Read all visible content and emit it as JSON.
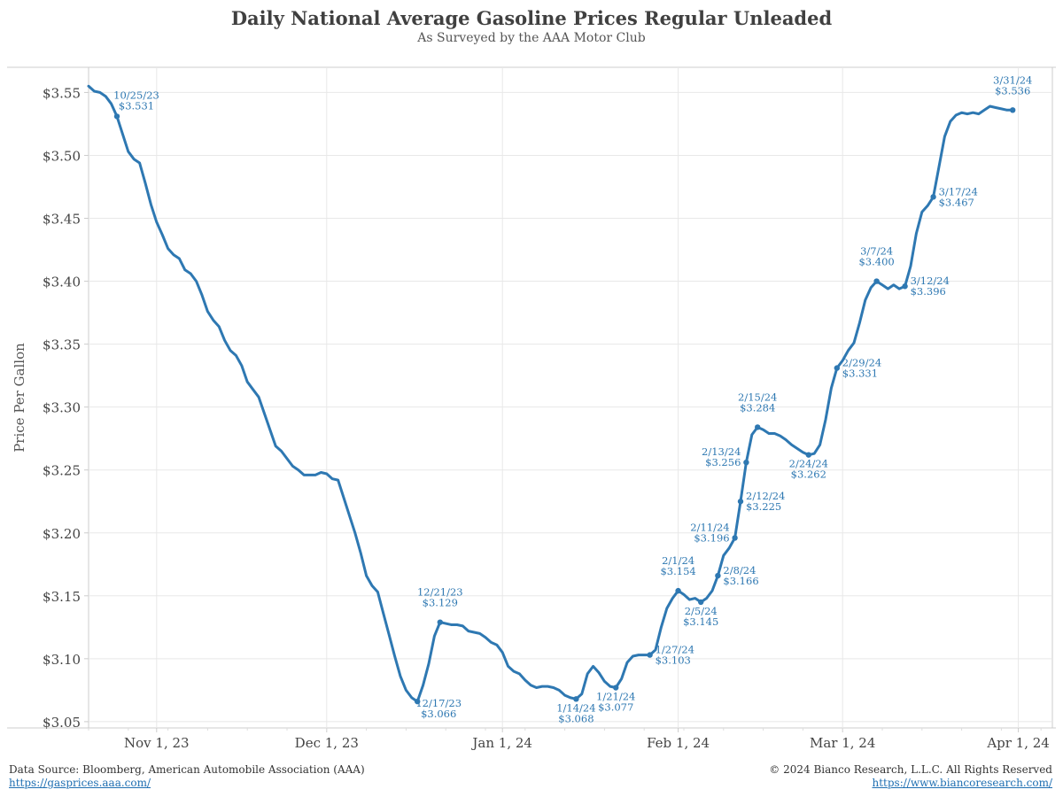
{
  "title": "Daily National Average Gasoline Prices Regular Unleaded",
  "subtitle": "As Surveyed by the AAA Motor Club",
  "footer": {
    "source": "Data Source: Bloomberg, American Automobile Association (AAA)",
    "source_link": "https://gasprices.aaa.com/",
    "copyright": "© 2024 Bianco Research, L.L.C. All Rights Reserved",
    "site_link": "https://www.biancoresearch.com/"
  },
  "colors": {
    "line": "#2e78b2",
    "label": "#2e78b2",
    "grid": "#e8e8e8",
    "axis": "#cccccc"
  },
  "chart_data": {
    "type": "line",
    "title": "Daily National Average Gasoline Prices Regular Unleaded",
    "subtitle": "As Surveyed by the AAA Motor Club",
    "xlabel": "",
    "ylabel": "Price Per Gallon",
    "xlim": [
      "2023-10-20",
      "2024-04-07"
    ],
    "ylim": [
      3.045,
      3.57
    ],
    "grid": true,
    "x_ticks": [
      {
        "date": "2023-11-01",
        "label": "Nov 1, 23"
      },
      {
        "date": "2023-12-01",
        "label": "Dec 1, 23"
      },
      {
        "date": "2024-01-01",
        "label": "Jan 1, 24"
      },
      {
        "date": "2024-02-01",
        "label": "Feb 1, 24"
      },
      {
        "date": "2024-03-01",
        "label": "Mar 1, 24"
      },
      {
        "date": "2024-04-01",
        "label": "Apr 1, 24"
      }
    ],
    "y_ticks": [
      {
        "value": 3.05,
        "label": "$3.05"
      },
      {
        "value": 3.1,
        "label": "$3.10"
      },
      {
        "value": 3.15,
        "label": "$3.15"
      },
      {
        "value": 3.2,
        "label": "$3.20"
      },
      {
        "value": 3.25,
        "label": "$3.25"
      },
      {
        "value": 3.3,
        "label": "$3.30"
      },
      {
        "value": 3.35,
        "label": "$3.35"
      },
      {
        "value": 3.4,
        "label": "$3.40"
      },
      {
        "value": 3.45,
        "label": "$3.45"
      },
      {
        "value": 3.5,
        "label": "$3.50"
      },
      {
        "value": 3.55,
        "label": "$3.55"
      }
    ],
    "series": [
      {
        "points": [
          [
            "2023-10-20",
            3.555
          ],
          [
            "2023-10-21",
            3.551
          ],
          [
            "2023-10-22",
            3.55
          ],
          [
            "2023-10-23",
            3.547
          ],
          [
            "2023-10-24",
            3.541
          ],
          [
            "2023-10-25",
            3.531
          ],
          [
            "2023-10-26",
            3.517
          ],
          [
            "2023-10-27",
            3.503
          ],
          [
            "2023-10-28",
            3.497
          ],
          [
            "2023-10-29",
            3.494
          ],
          [
            "2023-10-30",
            3.478
          ],
          [
            "2023-10-31",
            3.461
          ],
          [
            "2023-11-01",
            3.447
          ],
          [
            "2023-11-02",
            3.437
          ],
          [
            "2023-11-03",
            3.426
          ],
          [
            "2023-11-04",
            3.421
          ],
          [
            "2023-11-05",
            3.418
          ],
          [
            "2023-11-06",
            3.409
          ],
          [
            "2023-11-07",
            3.406
          ],
          [
            "2023-11-08",
            3.4
          ],
          [
            "2023-11-09",
            3.389
          ],
          [
            "2023-11-10",
            3.376
          ],
          [
            "2023-11-11",
            3.369
          ],
          [
            "2023-11-12",
            3.364
          ],
          [
            "2023-11-13",
            3.353
          ],
          [
            "2023-11-14",
            3.345
          ],
          [
            "2023-11-15",
            3.341
          ],
          [
            "2023-11-16",
            3.333
          ],
          [
            "2023-11-17",
            3.32
          ],
          [
            "2023-11-18",
            3.314
          ],
          [
            "2023-11-19",
            3.308
          ],
          [
            "2023-11-20",
            3.295
          ],
          [
            "2023-11-21",
            3.282
          ],
          [
            "2023-11-22",
            3.269
          ],
          [
            "2023-11-23",
            3.265
          ],
          [
            "2023-11-24",
            3.259
          ],
          [
            "2023-11-25",
            3.253
          ],
          [
            "2023-11-26",
            3.25
          ],
          [
            "2023-11-27",
            3.246
          ],
          [
            "2023-11-28",
            3.246
          ],
          [
            "2023-11-29",
            3.246
          ],
          [
            "2023-11-30",
            3.248
          ],
          [
            "2023-12-01",
            3.247
          ],
          [
            "2023-12-02",
            3.243
          ],
          [
            "2023-12-03",
            3.242
          ],
          [
            "2023-12-04",
            3.228
          ],
          [
            "2023-12-05",
            3.214
          ],
          [
            "2023-12-06",
            3.2
          ],
          [
            "2023-12-07",
            3.184
          ],
          [
            "2023-12-08",
            3.166
          ],
          [
            "2023-12-09",
            3.158
          ],
          [
            "2023-12-10",
            3.153
          ],
          [
            "2023-12-11",
            3.136
          ],
          [
            "2023-12-12",
            3.119
          ],
          [
            "2023-12-13",
            3.102
          ],
          [
            "2023-12-14",
            3.086
          ],
          [
            "2023-12-15",
            3.075
          ],
          [
            "2023-12-16",
            3.069
          ],
          [
            "2023-12-17",
            3.066
          ],
          [
            "2023-12-18",
            3.079
          ],
          [
            "2023-12-19",
            3.096
          ],
          [
            "2023-12-20",
            3.118
          ],
          [
            "2023-12-21",
            3.129
          ],
          [
            "2023-12-22",
            3.128
          ],
          [
            "2023-12-23",
            3.127
          ],
          [
            "2023-12-24",
            3.127
          ],
          [
            "2023-12-25",
            3.126
          ],
          [
            "2023-12-26",
            3.122
          ],
          [
            "2023-12-27",
            3.121
          ],
          [
            "2023-12-28",
            3.12
          ],
          [
            "2023-12-29",
            3.117
          ],
          [
            "2023-12-30",
            3.113
          ],
          [
            "2023-12-31",
            3.111
          ],
          [
            "2024-01-01",
            3.105
          ],
          [
            "2024-01-02",
            3.094
          ],
          [
            "2024-01-03",
            3.09
          ],
          [
            "2024-01-04",
            3.088
          ],
          [
            "2024-01-05",
            3.083
          ],
          [
            "2024-01-06",
            3.079
          ],
          [
            "2024-01-07",
            3.077
          ],
          [
            "2024-01-08",
            3.078
          ],
          [
            "2024-01-09",
            3.078
          ],
          [
            "2024-01-10",
            3.077
          ],
          [
            "2024-01-11",
            3.075
          ],
          [
            "2024-01-12",
            3.071
          ],
          [
            "2024-01-13",
            3.069
          ],
          [
            "2024-01-14",
            3.068
          ],
          [
            "2024-01-15",
            3.072
          ],
          [
            "2024-01-16",
            3.088
          ],
          [
            "2024-01-17",
            3.094
          ],
          [
            "2024-01-18",
            3.089
          ],
          [
            "2024-01-19",
            3.082
          ],
          [
            "2024-01-20",
            3.078
          ],
          [
            "2024-01-21",
            3.077
          ],
          [
            "2024-01-22",
            3.084
          ],
          [
            "2024-01-23",
            3.097
          ],
          [
            "2024-01-24",
            3.102
          ],
          [
            "2024-01-25",
            3.103
          ],
          [
            "2024-01-26",
            3.103
          ],
          [
            "2024-01-27",
            3.103
          ],
          [
            "2024-01-28",
            3.107
          ],
          [
            "2024-01-29",
            3.125
          ],
          [
            "2024-01-30",
            3.14
          ],
          [
            "2024-01-31",
            3.148
          ],
          [
            "2024-02-01",
            3.154
          ],
          [
            "2024-02-02",
            3.151
          ],
          [
            "2024-02-03",
            3.147
          ],
          [
            "2024-02-04",
            3.148
          ],
          [
            "2024-02-05",
            3.145
          ],
          [
            "2024-02-06",
            3.148
          ],
          [
            "2024-02-07",
            3.154
          ],
          [
            "2024-02-08",
            3.166
          ],
          [
            "2024-02-09",
            3.182
          ],
          [
            "2024-02-10",
            3.188
          ],
          [
            "2024-02-11",
            3.196
          ],
          [
            "2024-02-12",
            3.225
          ],
          [
            "2024-02-13",
            3.256
          ],
          [
            "2024-02-14",
            3.278
          ],
          [
            "2024-02-15",
            3.284
          ],
          [
            "2024-02-16",
            3.282
          ],
          [
            "2024-02-17",
            3.279
          ],
          [
            "2024-02-18",
            3.279
          ],
          [
            "2024-02-19",
            3.277
          ],
          [
            "2024-02-20",
            3.274
          ],
          [
            "2024-02-21",
            3.27
          ],
          [
            "2024-02-22",
            3.267
          ],
          [
            "2024-02-23",
            3.264
          ],
          [
            "2024-02-24",
            3.262
          ],
          [
            "2024-02-25",
            3.263
          ],
          [
            "2024-02-26",
            3.27
          ],
          [
            "2024-02-27",
            3.29
          ],
          [
            "2024-02-28",
            3.315
          ],
          [
            "2024-02-29",
            3.331
          ],
          [
            "2024-03-01",
            3.337
          ],
          [
            "2024-03-02",
            3.345
          ],
          [
            "2024-03-03",
            3.351
          ],
          [
            "2024-03-04",
            3.367
          ],
          [
            "2024-03-05",
            3.385
          ],
          [
            "2024-03-06",
            3.395
          ],
          [
            "2024-03-07",
            3.4
          ],
          [
            "2024-03-08",
            3.397
          ],
          [
            "2024-03-09",
            3.394
          ],
          [
            "2024-03-10",
            3.397
          ],
          [
            "2024-03-11",
            3.394
          ],
          [
            "2024-03-12",
            3.396
          ],
          [
            "2024-03-13",
            3.412
          ],
          [
            "2024-03-14",
            3.438
          ],
          [
            "2024-03-15",
            3.455
          ],
          [
            "2024-03-16",
            3.46
          ],
          [
            "2024-03-17",
            3.467
          ],
          [
            "2024-03-18",
            3.491
          ],
          [
            "2024-03-19",
            3.515
          ],
          [
            "2024-03-20",
            3.527
          ],
          [
            "2024-03-21",
            3.532
          ],
          [
            "2024-03-22",
            3.534
          ],
          [
            "2024-03-23",
            3.533
          ],
          [
            "2024-03-24",
            3.534
          ],
          [
            "2024-03-25",
            3.533
          ],
          [
            "2024-03-26",
            3.536
          ],
          [
            "2024-03-27",
            3.539
          ],
          [
            "2024-03-28",
            3.538
          ],
          [
            "2024-03-29",
            3.537
          ],
          [
            "2024-03-30",
            3.536
          ],
          [
            "2024-03-31",
            3.536
          ]
        ]
      }
    ],
    "annotations": [
      {
        "date": "2023-10-25",
        "value": 3.531,
        "date_label": "10/25/23",
        "value_label": "$3.531",
        "placement": "top-right"
      },
      {
        "date": "2023-12-17",
        "value": 3.066,
        "date_label": "12/17/23",
        "value_label": "$3.066",
        "placement": "bottom-right"
      },
      {
        "date": "2023-12-21",
        "value": 3.129,
        "date_label": "12/21/23",
        "value_label": "$3.129",
        "placement": "top"
      },
      {
        "date": "2024-01-14",
        "value": 3.068,
        "date_label": "1/14/24",
        "value_label": "$3.068",
        "placement": "bottom"
      },
      {
        "date": "2024-01-21",
        "value": 3.077,
        "date_label": "1/21/24",
        "value_label": "$3.077",
        "placement": "bottom"
      },
      {
        "date": "2024-01-27",
        "value": 3.103,
        "date_label": "1/27/24",
        "value_label": "$3.103",
        "placement": "right"
      },
      {
        "date": "2024-02-01",
        "value": 3.154,
        "date_label": "2/1/24",
        "value_label": "$3.154",
        "placement": "top"
      },
      {
        "date": "2024-02-05",
        "value": 3.145,
        "date_label": "2/5/24",
        "value_label": "$3.145",
        "placement": "bottom"
      },
      {
        "date": "2024-02-08",
        "value": 3.166,
        "date_label": "2/8/24",
        "value_label": "$3.166",
        "placement": "right"
      },
      {
        "date": "2024-02-11",
        "value": 3.196,
        "date_label": "2/11/24",
        "value_label": "$3.196",
        "placement": "left"
      },
      {
        "date": "2024-02-12",
        "value": 3.225,
        "date_label": "2/12/24",
        "value_label": "$3.225",
        "placement": "right"
      },
      {
        "date": "2024-02-13",
        "value": 3.256,
        "date_label": "2/13/24",
        "value_label": "$3.256",
        "placement": "left"
      },
      {
        "date": "2024-02-15",
        "value": 3.284,
        "date_label": "2/15/24",
        "value_label": "$3.284",
        "placement": "top"
      },
      {
        "date": "2024-02-24",
        "value": 3.262,
        "date_label": "2/24/24",
        "value_label": "$3.262",
        "placement": "bottom"
      },
      {
        "date": "2024-02-29",
        "value": 3.331,
        "date_label": "2/29/24",
        "value_label": "$3.331",
        "placement": "right"
      },
      {
        "date": "2024-03-07",
        "value": 3.4,
        "date_label": "3/7/24",
        "value_label": "$3.400",
        "placement": "top"
      },
      {
        "date": "2024-03-12",
        "value": 3.396,
        "date_label": "3/12/24",
        "value_label": "$3.396",
        "placement": "right"
      },
      {
        "date": "2024-03-17",
        "value": 3.467,
        "date_label": "3/17/24",
        "value_label": "$3.467",
        "placement": "right"
      },
      {
        "date": "2024-03-31",
        "value": 3.536,
        "date_label": "3/31/24",
        "value_label": "$3.536",
        "placement": "top"
      }
    ]
  }
}
